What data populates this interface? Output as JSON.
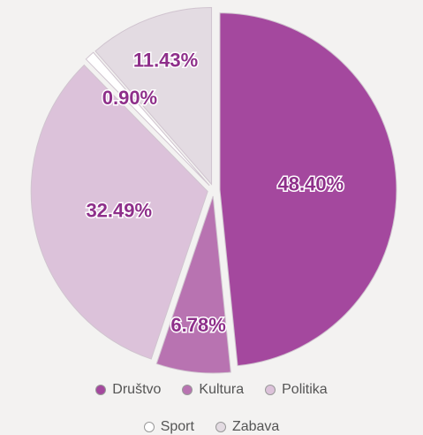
{
  "chart_data": {
    "type": "pie",
    "categories": [
      "Društvo",
      "Kultura",
      "Politika",
      "Sport",
      "Zabava"
    ],
    "values": [
      48.4,
      6.78,
      32.49,
      0.9,
      11.43
    ],
    "value_labels": [
      "48.40%",
      "6.78%",
      "32.49%",
      "0.90%",
      "11.43%"
    ],
    "colors": [
      "#a4489e",
      "#b873b1",
      "#dcc2da",
      "#ffffff",
      "#e3dbe2"
    ]
  }
}
